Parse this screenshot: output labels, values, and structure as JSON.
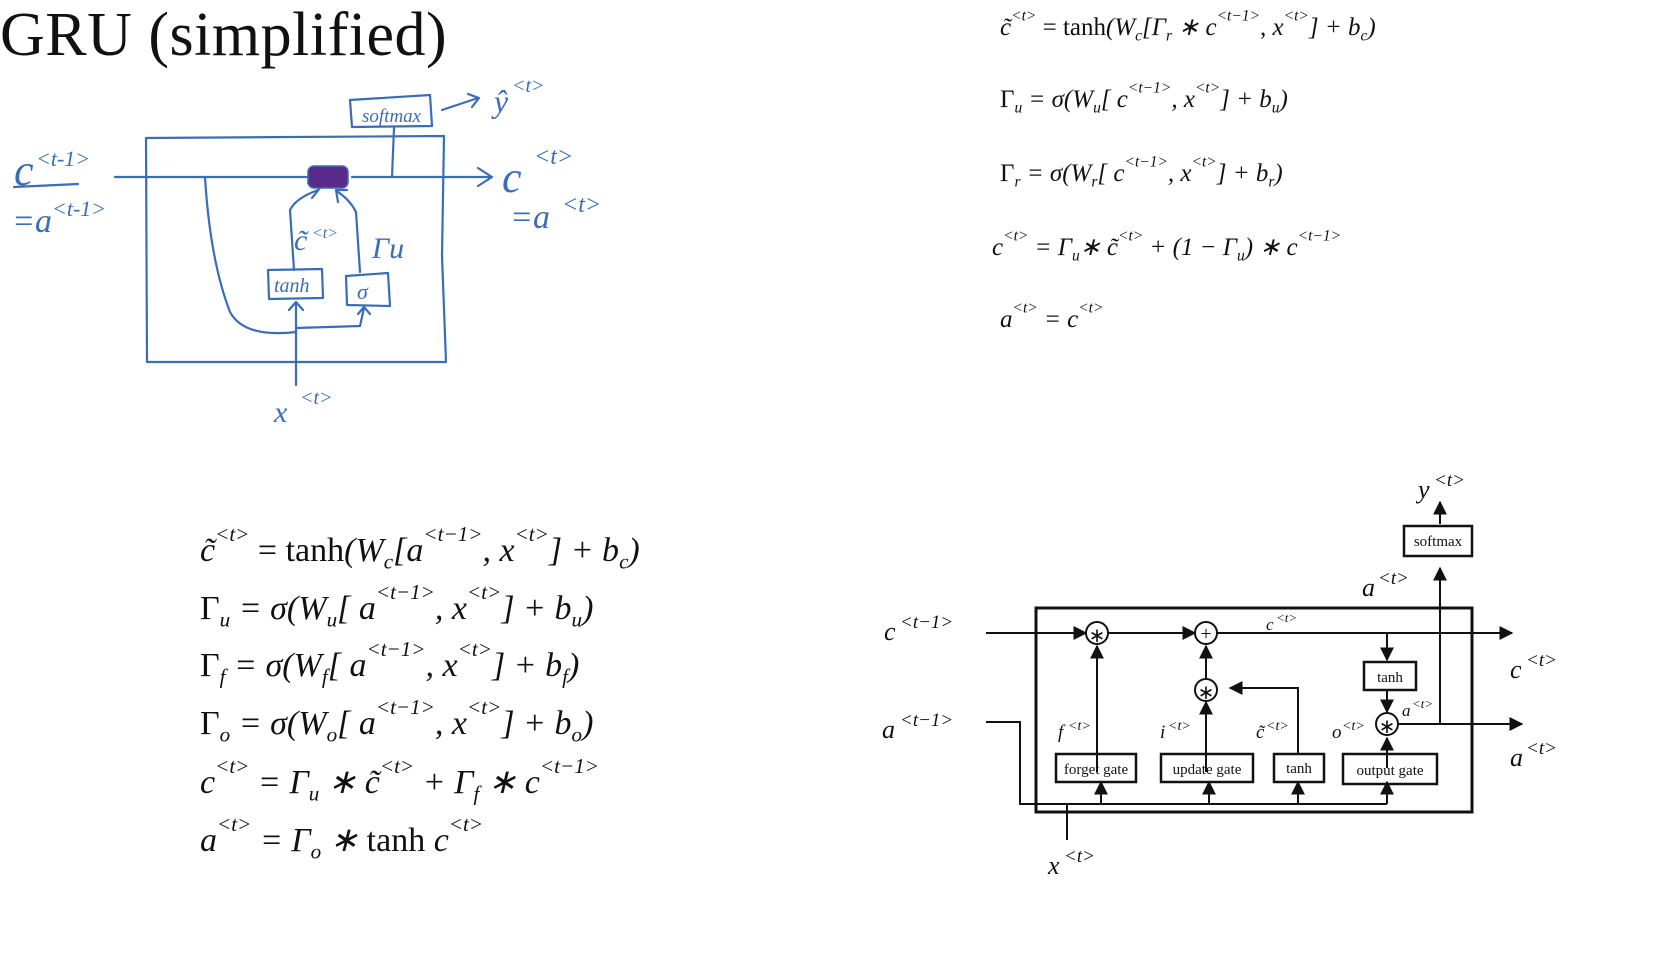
{
  "title": "GRU (simplified)",
  "sketch": {
    "c_prev": "c",
    "c_prev_sup": "<t-1>",
    "a_prev": "=a",
    "a_prev_sup": "<t-1>",
    "softmax": "softmax",
    "y_hat": "ŷ",
    "y_sup": "<t>",
    "c_out": "c",
    "c_out_sup": "<t>",
    "a_out": "=a",
    "a_out_sup": "<t>",
    "ctilde": "c̃",
    "ctilde_sup": "<t>",
    "gamma_u": "Γu",
    "tanh": "tanh",
    "sigma": "σ",
    "x": "x",
    "x_sup": "<t>"
  },
  "gru_equations": {
    "eq1": {
      "lhs": "c̃",
      "lhs_sup": "<t>",
      "p1": " = ",
      "fn": "tanh",
      "p2": "(W",
      "w_sub": "c",
      "p3": "[Γ",
      "g_sub": "r",
      "p4": " ∗ c",
      "s1": "<t−1>",
      "p5": ", x",
      "s2": "<t>",
      "p6": "] + b",
      "b_sub": "c",
      "p7": ")"
    },
    "eq2": {
      "lhs": "Γ",
      "lhs_sub": "u",
      "p1": " = σ(W",
      "w_sub": "u",
      "p2": "[ c",
      "s1": "<t−1>",
      "p3": ", x",
      "s2": "<t>",
      "p4": "] + b",
      "b_sub": "u",
      "p5": ")"
    },
    "eq3": {
      "lhs": "Γ",
      "lhs_sub": "r",
      "p1": " = σ(W",
      "w_sub": "r",
      "p2": "[ c",
      "s1": "<t−1>",
      "p3": ", x",
      "s2": "<t>",
      "p4": "] + b",
      "b_sub": "r",
      "p5": ")"
    },
    "eq4": {
      "lhs": "c",
      "lhs_sup": "<t>",
      "p1": " = Γ",
      "g_sub": "u",
      "p2": "∗ c̃",
      "s1": "<t>",
      "p3": " + (1 − Γ",
      "g2_sub": "u",
      "p4": ") ∗ c",
      "s2": "<t−1>"
    },
    "eq5": {
      "lhs": "a",
      "lhs_sup": "<t>",
      "p1": " = c",
      "s1": "<t>"
    }
  },
  "lstm_equations": {
    "eq1": {
      "lhs": "c̃",
      "lhs_sup": "<t>",
      "p1": " = ",
      "fn": "tanh",
      "p2": "(W",
      "w_sub": "c",
      "p3": "[a",
      "s1": "<t−1>",
      "p4": ", x",
      "s2": "<t>",
      "p5": "] + b",
      "b_sub": "c",
      "p6": ")"
    },
    "eq2": {
      "lhs": "Γ",
      "lhs_sub": "u",
      "p1": " = σ(W",
      "w_sub": "u",
      "p2": "[ a",
      "s1": "<t−1>",
      "p3": ", x",
      "s2": "<t>",
      "p4": "] + b",
      "b_sub": "u",
      "p5": ")"
    },
    "eq3": {
      "lhs": "Γ",
      "lhs_sub": "f",
      "p1": " = σ(W",
      "w_sub": "f",
      "p2": "[ a",
      "s1": "<t−1>",
      "p3": ", x",
      "s2": "<t>",
      "p4": "] + b",
      "b_sub": "f",
      "p5": ")"
    },
    "eq4": {
      "lhs": "Γ",
      "lhs_sub": "o",
      "p1": " = σ(W",
      "w_sub": "o",
      "p2": "[ a",
      "s1": "<t−1>",
      "p3": ", x",
      "s2": "<t>",
      "p4": "] + b",
      "b_sub": "o",
      "p5": ")"
    },
    "eq5": {
      "lhs": "c",
      "lhs_sup": "<t>",
      "p1": " =   Γ",
      "g_sub": "u",
      "p2": " ∗ c̃",
      "s1": "<t>",
      "p3": " + Γ",
      "g2_sub": "f",
      "p4": " ∗ c",
      "s2": "<t−1>"
    },
    "eq6": {
      "lhs": "a",
      "lhs_sup": "<t>",
      "p1": " = Γ",
      "g_sub": "o",
      "p2": " ∗ ",
      "fn": "tanh",
      "p3": " c",
      "s1": "<t>"
    }
  },
  "lstm_diagram": {
    "c_prev": "c",
    "c_prev_sup": "<t−1>",
    "a_prev": "a",
    "a_prev_sup": "<t−1>",
    "x": "x",
    "x_sup": "<t>",
    "y": "y",
    "y_sup": "<t>",
    "a_top": "a",
    "a_top_sup": "<t>",
    "c_mid": "c",
    "c_mid_sup": "<t>",
    "c_out": "c",
    "c_out_sup": "<t>",
    "a_out": "a",
    "a_out_sup": "<t>",
    "a_inner": "a",
    "a_inner_sup": "<t>",
    "softmax": "softmax",
    "tanh_top": "tanh",
    "f_label": "f",
    "i_label": "i",
    "ctilde_label": "c̃",
    "o_label": "o",
    "gate_sup": "<t>",
    "forget_gate": "forget gate",
    "update_gate": "update gate",
    "tanh_gate": "tanh",
    "output_gate": "output gate",
    "mult": "∗",
    "plus": "+"
  },
  "colors": {
    "ink": "#3a6db5",
    "highlight": "#5a2a8a",
    "text": "#111111"
  }
}
